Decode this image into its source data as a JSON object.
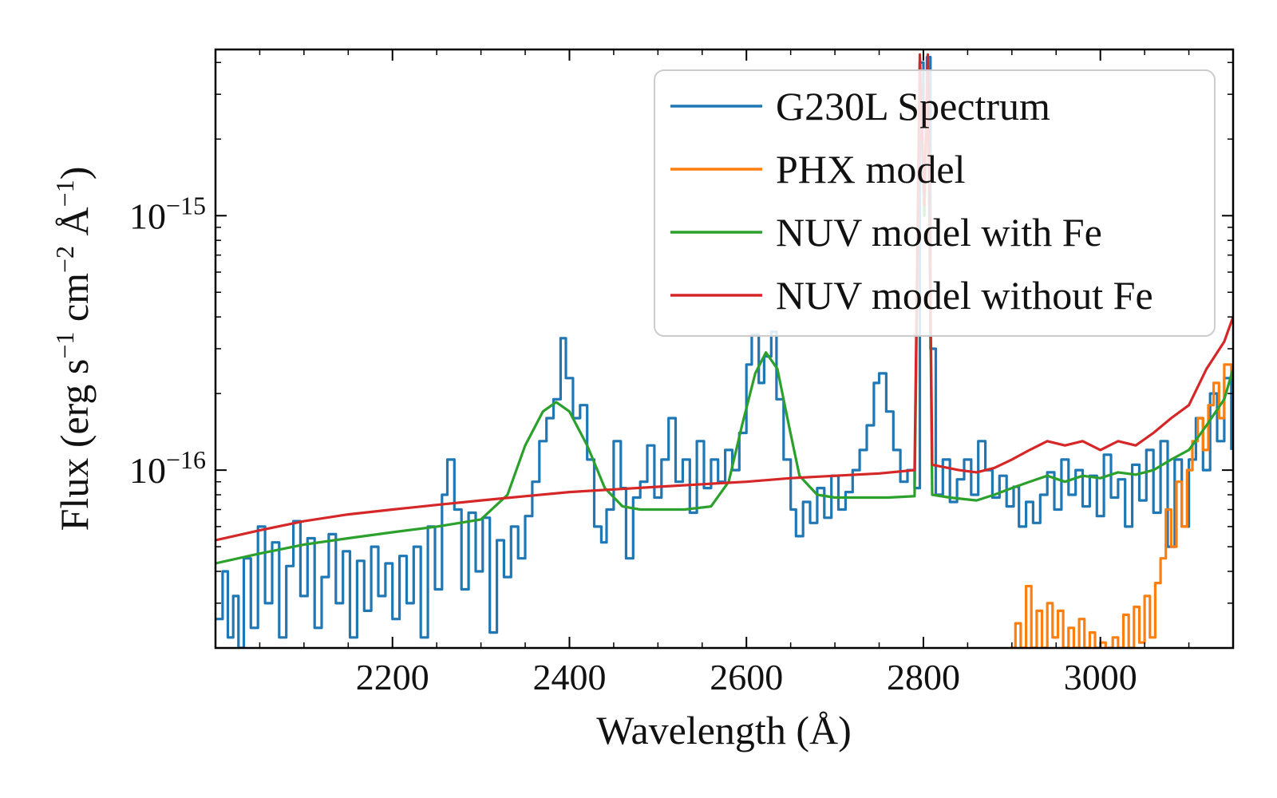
{
  "chart_data": {
    "type": "line",
    "xlabel": "Wavelength (Å)",
    "ylabel_parts": {
      "prefix": "Flux (erg s",
      "exp1": "−1",
      "mid1": " cm",
      "exp2": "−2",
      "mid2": " Å",
      "exp3": "−1",
      "suffix": ")"
    },
    "xlim": [
      2000,
      3150
    ],
    "ylim": [
      2e-17,
      4.5e-15
    ],
    "yscale": "log",
    "x_ticks": [
      {
        "value": 2200,
        "label": "2200"
      },
      {
        "value": 2400,
        "label": "2400"
      },
      {
        "value": 2600,
        "label": "2600"
      },
      {
        "value": 2800,
        "label": "2800"
      },
      {
        "value": 3000,
        "label": "3000"
      }
    ],
    "y_ticks": [
      {
        "value": 1e-16,
        "base": "10",
        "exp": "−16"
      },
      {
        "value": 1e-15,
        "base": "10",
        "exp": "−15"
      }
    ],
    "legend_position": "upper-right",
    "grid": false,
    "series": [
      {
        "name": "G230L Spectrum",
        "color": "#1f77b4",
        "step": true,
        "points": [
          [
            2000,
            2.6e-17
          ],
          [
            2008,
            4e-17
          ],
          [
            2014,
            2.2e-17
          ],
          [
            2020,
            3.2e-17
          ],
          [
            2026,
            2e-17
          ],
          [
            2032,
            4.5e-17
          ],
          [
            2040,
            2.4e-17
          ],
          [
            2048,
            6e-17
          ],
          [
            2056,
            3e-17
          ],
          [
            2064,
            5.2e-17
          ],
          [
            2072,
            2.2e-17
          ],
          [
            2080,
            4.2e-17
          ],
          [
            2088,
            6.3e-17
          ],
          [
            2096,
            3.2e-17
          ],
          [
            2104,
            5.4e-17
          ],
          [
            2112,
            2.4e-17
          ],
          [
            2120,
            3.8e-17
          ],
          [
            2128,
            5.6e-17
          ],
          [
            2136,
            3e-17
          ],
          [
            2144,
            4.8e-17
          ],
          [
            2152,
            2.2e-17
          ],
          [
            2160,
            4.4e-17
          ],
          [
            2168,
            2.8e-17
          ],
          [
            2176,
            5e-17
          ],
          [
            2184,
            3.2e-17
          ],
          [
            2192,
            4.3e-17
          ],
          [
            2200,
            2.6e-17
          ],
          [
            2208,
            4.6e-17
          ],
          [
            2216,
            3e-17
          ],
          [
            2224,
            5e-17
          ],
          [
            2232,
            2.2e-17
          ],
          [
            2240,
            6e-17
          ],
          [
            2248,
            3.4e-17
          ],
          [
            2256,
            8e-17
          ],
          [
            2262,
            1.1e-16
          ],
          [
            2270,
            7e-17
          ],
          [
            2278,
            3.4e-17
          ],
          [
            2286,
            6.8e-17
          ],
          [
            2294,
            4e-17
          ],
          [
            2302,
            6.5e-17
          ],
          [
            2310,
            2.3e-17
          ],
          [
            2318,
            5.3e-17
          ],
          [
            2326,
            3.8e-17
          ],
          [
            2334,
            6e-17
          ],
          [
            2342,
            4.5e-17
          ],
          [
            2350,
            6.6e-17
          ],
          [
            2358,
            9e-17
          ],
          [
            2366,
            1.3e-16
          ],
          [
            2374,
            1.6e-16
          ],
          [
            2382,
            1.9e-16
          ],
          [
            2390,
            3.3e-16
          ],
          [
            2396,
            2.3e-16
          ],
          [
            2404,
            1.6e-16
          ],
          [
            2412,
            1.8e-16
          ],
          [
            2420,
            1.1e-16
          ],
          [
            2428,
            6e-17
          ],
          [
            2436,
            5.2e-17
          ],
          [
            2442,
            7e-17
          ],
          [
            2450,
            1.3e-16
          ],
          [
            2458,
            8.5e-17
          ],
          [
            2464,
            4.5e-17
          ],
          [
            2472,
            7.8e-17
          ],
          [
            2480,
            9e-17
          ],
          [
            2488,
            1.25e-16
          ],
          [
            2496,
            7.8e-17
          ],
          [
            2504,
            1.1e-16
          ],
          [
            2512,
            1.6e-16
          ],
          [
            2520,
            9e-17
          ],
          [
            2528,
            1.1e-16
          ],
          [
            2536,
            6.8e-17
          ],
          [
            2544,
            1.3e-16
          ],
          [
            2552,
            8.5e-17
          ],
          [
            2560,
            1.1e-16
          ],
          [
            2568,
            9e-17
          ],
          [
            2576,
            1.2e-16
          ],
          [
            2584,
            1e-16
          ],
          [
            2592,
            1.4e-16
          ],
          [
            2600,
            2.6e-16
          ],
          [
            2606,
            3.4e-16
          ],
          [
            2614,
            2.2e-16
          ],
          [
            2620,
            2.8e-16
          ],
          [
            2628,
            3.5e-16
          ],
          [
            2634,
            1.9e-16
          ],
          [
            2642,
            1.1e-16
          ],
          [
            2650,
            7e-17
          ],
          [
            2656,
            5.5e-17
          ],
          [
            2664,
            7.5e-17
          ],
          [
            2672,
            6.2e-17
          ],
          [
            2680,
            8.5e-17
          ],
          [
            2688,
            6.5e-17
          ],
          [
            2696,
            9.5e-17
          ],
          [
            2704,
            7e-17
          ],
          [
            2712,
            8.2e-17
          ],
          [
            2720,
            1e-16
          ],
          [
            2728,
            1.2e-16
          ],
          [
            2736,
            1.5e-16
          ],
          [
            2744,
            2.2e-16
          ],
          [
            2750,
            2.4e-16
          ],
          [
            2758,
            1.7e-16
          ],
          [
            2766,
            1.2e-16
          ],
          [
            2774,
            9e-17
          ],
          [
            2782,
            1e-16
          ],
          [
            2790,
            8.5e-17
          ],
          [
            2796,
            4e-15
          ],
          [
            2800,
            2.5e-15
          ],
          [
            2804,
            4.2e-15
          ],
          [
            2808,
            3e-16
          ],
          [
            2814,
            8e-17
          ],
          [
            2822,
            1.1e-16
          ],
          [
            2830,
            7.5e-17
          ],
          [
            2838,
            9.2e-17
          ],
          [
            2846,
            1.1e-16
          ],
          [
            2854,
            8e-17
          ],
          [
            2862,
            1.3e-16
          ],
          [
            2870,
            1e-16
          ],
          [
            2878,
            7.8e-17
          ],
          [
            2886,
            9.5e-17
          ],
          [
            2894,
            7.2e-17
          ],
          [
            2902,
            8.6e-17
          ],
          [
            2908,
            6e-17
          ],
          [
            2916,
            7.5e-17
          ],
          [
            2924,
            6.2e-17
          ],
          [
            2932,
            8e-17
          ],
          [
            2940,
            9.8e-17
          ],
          [
            2948,
            7e-17
          ],
          [
            2956,
            1.1e-16
          ],
          [
            2964,
            8e-17
          ],
          [
            2972,
            1e-16
          ],
          [
            2980,
            7.2e-17
          ],
          [
            2988,
            9.5e-17
          ],
          [
            2996,
            6.6e-17
          ],
          [
            3004,
            1.15e-16
          ],
          [
            3012,
            7.8e-17
          ],
          [
            3020,
            9.2e-17
          ],
          [
            3028,
            6e-17
          ],
          [
            3036,
            1.05e-16
          ],
          [
            3044,
            7.6e-17
          ],
          [
            3052,
            1.2e-16
          ],
          [
            3060,
            6.8e-17
          ],
          [
            3068,
            1.3e-16
          ],
          [
            3076,
            5e-17
          ],
          [
            3084,
            1.1e-16
          ],
          [
            3092,
            6e-17
          ],
          [
            3100,
            1.1e-16
          ],
          [
            3108,
            1.6e-16
          ],
          [
            3116,
            1e-16
          ],
          [
            3124,
            2e-16
          ],
          [
            3132,
            1.3e-16
          ],
          [
            3140,
            2.3e-16
          ],
          [
            3148,
            1.2e-16
          ]
        ]
      },
      {
        "name": "PHX model",
        "color": "#ff7f0e",
        "step": true,
        "points": [
          [
            2898,
            2e-17
          ],
          [
            2904,
            2.5e-17
          ],
          [
            2910,
            2e-17
          ],
          [
            2916,
            3.5e-17
          ],
          [
            2922,
            2e-17
          ],
          [
            2928,
            2.8e-17
          ],
          [
            2934,
            2e-17
          ],
          [
            2940,
            3e-17
          ],
          [
            2946,
            2.2e-17
          ],
          [
            2952,
            2.8e-17
          ],
          [
            2958,
            2e-17
          ],
          [
            2964,
            2.4e-17
          ],
          [
            2970,
            2e-17
          ],
          [
            2976,
            2.6e-17
          ],
          [
            2982,
            2e-17
          ],
          [
            2988,
            2.3e-17
          ],
          [
            2994,
            2e-17
          ],
          [
            3000,
            2.1e-17
          ],
          [
            3006,
            2e-17
          ],
          [
            3014,
            2.2e-17
          ],
          [
            3020,
            2e-17
          ],
          [
            3026,
            2.7e-17
          ],
          [
            3032,
            2e-17
          ],
          [
            3038,
            2.9e-17
          ],
          [
            3044,
            2.1e-17
          ],
          [
            3050,
            3.2e-17
          ],
          [
            3056,
            2.2e-17
          ],
          [
            3062,
            3.6e-17
          ],
          [
            3068,
            4.5e-17
          ],
          [
            3074,
            7e-17
          ],
          [
            3080,
            5e-17
          ],
          [
            3086,
            9e-17
          ],
          [
            3092,
            6e-17
          ],
          [
            3098,
            1e-16
          ],
          [
            3104,
            1.3e-16
          ],
          [
            3110,
            1.6e-16
          ],
          [
            3116,
            1.2e-16
          ],
          [
            3122,
            1.8e-16
          ],
          [
            3128,
            2.2e-16
          ],
          [
            3134,
            1.6e-16
          ],
          [
            3140,
            2.6e-16
          ],
          [
            3148,
            2.3e-16
          ]
        ]
      },
      {
        "name": "NUV model with Fe",
        "color": "#2ca02c",
        "step": false,
        "points": [
          [
            2000,
            4.3e-17
          ],
          [
            2050,
            4.7e-17
          ],
          [
            2100,
            5.1e-17
          ],
          [
            2150,
            5.4e-17
          ],
          [
            2200,
            5.7e-17
          ],
          [
            2250,
            6e-17
          ],
          [
            2300,
            6.4e-17
          ],
          [
            2330,
            8e-17
          ],
          [
            2350,
            1.25e-16
          ],
          [
            2370,
            1.7e-16
          ],
          [
            2385,
            1.85e-16
          ],
          [
            2400,
            1.7e-16
          ],
          [
            2420,
            1.25e-16
          ],
          [
            2440,
            8.5e-17
          ],
          [
            2460,
            7.2e-17
          ],
          [
            2480,
            7e-17
          ],
          [
            2500,
            7e-17
          ],
          [
            2530,
            7e-17
          ],
          [
            2560,
            7.2e-17
          ],
          [
            2580,
            9e-17
          ],
          [
            2595,
            1.5e-16
          ],
          [
            2610,
            2.4e-16
          ],
          [
            2622,
            2.9e-16
          ],
          [
            2635,
            2.5e-16
          ],
          [
            2648,
            1.5e-16
          ],
          [
            2660,
            9.5e-17
          ],
          [
            2680,
            8e-17
          ],
          [
            2700,
            7.8e-17
          ],
          [
            2730,
            7.8e-17
          ],
          [
            2760,
            7.8e-17
          ],
          [
            2790,
            7.9e-17
          ],
          [
            2796,
            4e-15
          ],
          [
            2801,
            1e-15
          ],
          [
            2805,
            4e-15
          ],
          [
            2810,
            8e-17
          ],
          [
            2830,
            7.8e-17
          ],
          [
            2860,
            7.6e-17
          ],
          [
            2880,
            8e-17
          ],
          [
            2900,
            8.5e-17
          ],
          [
            2920,
            9e-17
          ],
          [
            2940,
            9.5e-17
          ],
          [
            2960,
            9e-17
          ],
          [
            2980,
            9.5e-17
          ],
          [
            3000,
            9.3e-17
          ],
          [
            3020,
            9.8e-17
          ],
          [
            3040,
            9.6e-17
          ],
          [
            3060,
            1e-16
          ],
          [
            3080,
            1.1e-16
          ],
          [
            3100,
            1.2e-16
          ],
          [
            3120,
            1.5e-16
          ],
          [
            3140,
            1.9e-16
          ],
          [
            3150,
            2.5e-16
          ]
        ]
      },
      {
        "name": "NUV model without Fe",
        "color": "#d62728",
        "step": false,
        "points": [
          [
            2000,
            5.3e-17
          ],
          [
            2050,
            5.8e-17
          ],
          [
            2100,
            6.3e-17
          ],
          [
            2150,
            6.7e-17
          ],
          [
            2200,
            7e-17
          ],
          [
            2250,
            7.3e-17
          ],
          [
            2300,
            7.6e-17
          ],
          [
            2350,
            7.9e-17
          ],
          [
            2400,
            8.2e-17
          ],
          [
            2450,
            8.4e-17
          ],
          [
            2500,
            8.6e-17
          ],
          [
            2550,
            8.8e-17
          ],
          [
            2600,
            9e-17
          ],
          [
            2650,
            9.3e-17
          ],
          [
            2700,
            9.5e-17
          ],
          [
            2750,
            9.7e-17
          ],
          [
            2790,
            1e-16
          ],
          [
            2796,
            4.3e-15
          ],
          [
            2801,
            1.1e-15
          ],
          [
            2805,
            4.3e-15
          ],
          [
            2810,
            1.05e-16
          ],
          [
            2840,
            1e-16
          ],
          [
            2860,
            9.8e-17
          ],
          [
            2880,
            1.02e-16
          ],
          [
            2900,
            1.1e-16
          ],
          [
            2920,
            1.2e-16
          ],
          [
            2940,
            1.3e-16
          ],
          [
            2960,
            1.25e-16
          ],
          [
            2980,
            1.3e-16
          ],
          [
            3000,
            1.2e-16
          ],
          [
            3020,
            1.3e-16
          ],
          [
            3040,
            1.25e-16
          ],
          [
            3060,
            1.4e-16
          ],
          [
            3080,
            1.6e-16
          ],
          [
            3100,
            1.8e-16
          ],
          [
            3120,
            2.5e-16
          ],
          [
            3140,
            3.2e-16
          ],
          [
            3150,
            4e-16
          ]
        ]
      }
    ]
  }
}
